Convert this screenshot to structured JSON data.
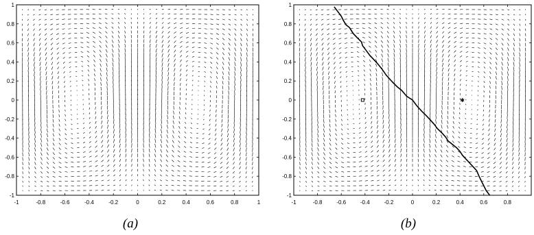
{
  "chart_data": [
    {
      "type": "quiver",
      "panel_label": "(a)",
      "xlim": [
        -1,
        1
      ],
      "ylim": [
        -1,
        1
      ],
      "xticks": [
        -1,
        -0.8,
        -0.6,
        -0.4,
        -0.2,
        0,
        0.2,
        0.4,
        0.6,
        0.8,
        1
      ],
      "xtick_labels": [
        "-1",
        "-0.8",
        "-0.6",
        "-0.4",
        "-0.2",
        "0",
        "0.2",
        "0.4",
        "0.6",
        "0.8",
        "1"
      ],
      "yticks": [
        -1,
        -0.8,
        -0.6,
        -0.4,
        -0.2,
        0,
        0.2,
        0.4,
        0.6,
        0.8,
        1
      ],
      "ytick_labels": [
        "-1",
        "-0.8",
        "-0.6",
        "-0.4",
        "-0.2",
        "0",
        "0.2",
        "0.4",
        "0.6",
        "0.8",
        "1"
      ],
      "field": {
        "description_free": true,
        "vortex_centers": [
          [
            -0.5,
            0
          ],
          [
            0.5,
            0
          ]
        ],
        "grid_n": 41
      },
      "grid": false,
      "color": "#000000"
    },
    {
      "type": "quiver",
      "panel_label": "(b)",
      "xlim": [
        -1,
        1
      ],
      "ylim": [
        -1,
        1
      ],
      "xticks": [
        -1,
        -0.8,
        -0.6,
        -0.4,
        -0.2,
        0,
        0.2,
        0.4,
        0.6,
        0.8
      ],
      "xtick_labels": [
        "-1",
        "-0.8",
        "-0.6",
        "-0.4",
        "-0.2",
        "0",
        "0.2",
        "0.4",
        "0.6",
        "0.8"
      ],
      "yticks": [
        -1,
        -0.8,
        -0.6,
        -0.4,
        -0.2,
        0,
        0.2,
        0.4,
        0.6,
        0.8,
        1
      ],
      "ytick_labels": [
        "-1",
        "-0.8",
        "-0.6",
        "-0.4",
        "-0.2",
        "0",
        "0.2",
        "0.4",
        "0.6",
        "0.8",
        "1"
      ],
      "field": {
        "vortex_centers": [
          [
            -0.42,
            0
          ],
          [
            0.42,
            0
          ]
        ],
        "grid_n": 41
      },
      "markers": [
        {
          "x": -0.42,
          "y": 0.0,
          "shape": "square"
        },
        {
          "x": 0.42,
          "y": 0.0,
          "shape": "star"
        }
      ],
      "trajectory": {
        "x": [
          -0.66,
          -0.63,
          -0.6,
          -0.58,
          -0.56,
          -0.53,
          -0.5,
          -0.47,
          -0.43,
          -0.42,
          -0.39,
          -0.36,
          -0.33,
          -0.3,
          -0.26,
          -0.22,
          -0.17,
          -0.13,
          -0.09,
          -0.05,
          0.0,
          0.03,
          0.05,
          0.08,
          0.12,
          0.15,
          0.18,
          0.21,
          0.25,
          0.28,
          0.3,
          0.34,
          0.37,
          0.4,
          0.42,
          0.45,
          0.48,
          0.51,
          0.54,
          0.56,
          0.58,
          0.6,
          0.62,
          0.65
        ],
        "y": [
          0.98,
          0.93,
          0.88,
          0.83,
          0.79,
          0.76,
          0.7,
          0.66,
          0.61,
          0.57,
          0.52,
          0.47,
          0.43,
          0.39,
          0.33,
          0.26,
          0.19,
          0.14,
          0.1,
          0.04,
          0.0,
          -0.05,
          -0.08,
          -0.12,
          -0.17,
          -0.21,
          -0.25,
          -0.3,
          -0.35,
          -0.39,
          -0.43,
          -0.47,
          -0.5,
          -0.54,
          -0.58,
          -0.62,
          -0.66,
          -0.7,
          -0.74,
          -0.8,
          -0.85,
          -0.9,
          -0.95,
          -1.0
        ]
      },
      "grid": false,
      "color": "#000000"
    }
  ]
}
